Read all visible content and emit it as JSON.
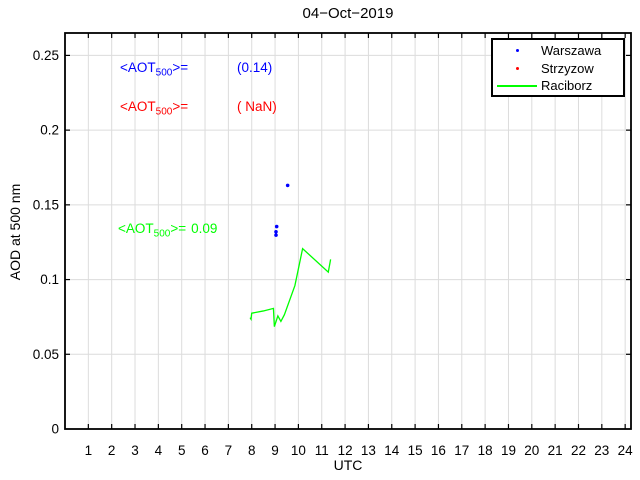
{
  "title": "04−Oct−2019",
  "colors": {
    "background": "#ffffff",
    "axis": "#000000",
    "grid": "#dcdcdc",
    "warszawa": "#0000ff",
    "strzyzow": "#ff0000",
    "raciborz": "#00ff00",
    "legend_border": "#000000"
  },
  "chart_data": {
    "type": "line",
    "title": "04−Oct−2019",
    "xlabel": "UTC",
    "ylabel": "AOD at 500 nm",
    "xlim": [
      0,
      24.25
    ],
    "ylim": [
      0,
      0.265
    ],
    "x_ticks": [
      1,
      2,
      3,
      4,
      5,
      6,
      7,
      8,
      9,
      10,
      11,
      12,
      13,
      14,
      15,
      16,
      17,
      18,
      19,
      20,
      21,
      22,
      23,
      24
    ],
    "x_tick_labels": [
      "1",
      "2",
      "3",
      "4",
      "5",
      "6",
      "7",
      "8",
      "9",
      "10",
      "11",
      "12",
      "13",
      "14",
      "15",
      "16",
      "17",
      "18",
      "19",
      "20",
      "21",
      "22",
      "23",
      "24"
    ],
    "y_ticks": [
      0,
      0.05,
      0.1,
      0.15,
      0.2,
      0.25
    ],
    "y_tick_labels": [
      "0",
      "0.05",
      "0.1",
      "0.15",
      "0.2",
      "0.25"
    ],
    "grid": true,
    "legend_position": "top-right",
    "series": [
      {
        "name": "Warszawa",
        "type": "scatter",
        "color": "#0000ff",
        "points": [
          [
            9.54,
            0.163
          ],
          [
            9.07,
            0.1355
          ],
          [
            9.04,
            0.132
          ],
          [
            9.04,
            0.1297
          ]
        ]
      },
      {
        "name": "Strzyzow",
        "type": "scatter",
        "color": "#ff0000",
        "points": []
      },
      {
        "name": "Raciborz",
        "type": "line",
        "color": "#00ff00",
        "points": [
          [
            7.93,
            0.0745
          ],
          [
            7.97,
            0.0735
          ],
          [
            8.0,
            0.0775
          ],
          [
            8.5,
            0.079
          ],
          [
            8.93,
            0.0807
          ],
          [
            8.97,
            0.0685
          ],
          [
            9.12,
            0.0757
          ],
          [
            9.25,
            0.072
          ],
          [
            9.4,
            0.0765
          ],
          [
            9.85,
            0.096
          ],
          [
            10.18,
            0.1207
          ],
          [
            11.28,
            0.105
          ],
          [
            11.38,
            0.1135
          ]
        ]
      }
    ]
  },
  "annotations": [
    {
      "prefix": "<AOT",
      "sub": "500",
      "mid": ">=",
      "value": "(0.14)",
      "color": "#0000ff"
    },
    {
      "prefix": "<AOT",
      "sub": "500",
      "mid": ">=",
      "value": "( NaN)",
      "color": "#ff0000"
    },
    {
      "prefix": "<AOT",
      "sub": "500",
      "mid": ">=",
      "value": "0.09",
      "color": "#00ff00"
    }
  ]
}
